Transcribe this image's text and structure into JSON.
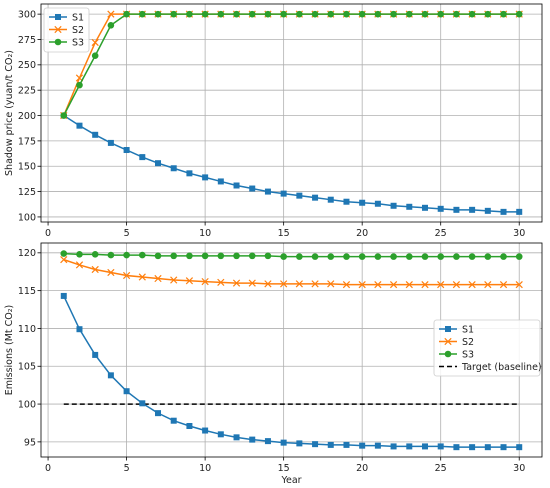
{
  "chart_data": [
    {
      "type": "line",
      "xlabel": "",
      "ylabel": "Shadow price (yuan/t CO₂)",
      "xlim": [
        -0.45,
        31.45
      ],
      "ylim": [
        95,
        310
      ],
      "xticks": [
        0,
        5,
        10,
        15,
        20,
        25,
        30
      ],
      "yticks": [
        100,
        125,
        150,
        175,
        200,
        225,
        250,
        275,
        300
      ],
      "grid": true,
      "legend_position": "top-left",
      "x": [
        1,
        2,
        3,
        4,
        5,
        6,
        7,
        8,
        9,
        10,
        11,
        12,
        13,
        14,
        15,
        16,
        17,
        18,
        19,
        20,
        21,
        22,
        23,
        24,
        25,
        26,
        27,
        28,
        29,
        30
      ],
      "series": [
        {
          "name": "S1",
          "color": "#1f77b4",
          "marker": "square",
          "values": [
            200,
            190,
            181,
            173,
            166,
            159,
            153,
            148,
            143,
            139,
            135,
            131,
            128,
            125,
            123,
            121,
            119,
            117,
            115,
            114,
            113,
            111,
            110,
            109,
            108,
            107,
            107,
            106,
            105,
            105
          ]
        },
        {
          "name": "S2",
          "color": "#ff7f0e",
          "marker": "x",
          "values": [
            200,
            237,
            272,
            300,
            300,
            300,
            300,
            300,
            300,
            300,
            300,
            300,
            300,
            300,
            300,
            300,
            300,
            300,
            300,
            300,
            300,
            300,
            300,
            300,
            300,
            300,
            300,
            300,
            300,
            300
          ]
        },
        {
          "name": "S3",
          "color": "#2ca02c",
          "marker": "circle",
          "values": [
            200,
            230,
            259,
            289,
            300,
            300,
            300,
            300,
            300,
            300,
            300,
            300,
            300,
            300,
            300,
            300,
            300,
            300,
            300,
            300,
            300,
            300,
            300,
            300,
            300,
            300,
            300,
            300,
            300,
            300
          ]
        }
      ]
    },
    {
      "type": "line",
      "xlabel": "Year",
      "ylabel": "Emissions (Mt CO₂)",
      "xlim": [
        -0.45,
        31.45
      ],
      "ylim": [
        93.0,
        121.3
      ],
      "xticks": [
        0,
        5,
        10,
        15,
        20,
        25,
        30
      ],
      "yticks": [
        95,
        100,
        105,
        110,
        115,
        120
      ],
      "grid": true,
      "legend_position": "center-right",
      "x": [
        1,
        2,
        3,
        4,
        5,
        6,
        7,
        8,
        9,
        10,
        11,
        12,
        13,
        14,
        15,
        16,
        17,
        18,
        19,
        20,
        21,
        22,
        23,
        24,
        25,
        26,
        27,
        28,
        29,
        30
      ],
      "series": [
        {
          "name": "S1",
          "color": "#1f77b4",
          "marker": "square",
          "values": [
            114.3,
            109.9,
            106.5,
            103.8,
            101.7,
            100.1,
            98.8,
            97.8,
            97.1,
            96.5,
            96.0,
            95.6,
            95.3,
            95.1,
            94.9,
            94.8,
            94.7,
            94.6,
            94.6,
            94.5,
            94.5,
            94.4,
            94.4,
            94.4,
            94.4,
            94.3,
            94.3,
            94.3,
            94.3,
            94.3
          ]
        },
        {
          "name": "S2",
          "color": "#ff7f0e",
          "marker": "x",
          "values": [
            119.1,
            118.4,
            117.8,
            117.4,
            117.0,
            116.8,
            116.6,
            116.4,
            116.3,
            116.2,
            116.1,
            116.0,
            116.0,
            115.9,
            115.9,
            115.9,
            115.9,
            115.9,
            115.8,
            115.8,
            115.8,
            115.8,
            115.8,
            115.8,
            115.8,
            115.8,
            115.8,
            115.8,
            115.8,
            115.8
          ]
        },
        {
          "name": "S3",
          "color": "#2ca02c",
          "marker": "circle",
          "values": [
            119.9,
            119.8,
            119.8,
            119.7,
            119.7,
            119.7,
            119.6,
            119.6,
            119.6,
            119.6,
            119.6,
            119.6,
            119.6,
            119.6,
            119.5,
            119.5,
            119.5,
            119.5,
            119.5,
            119.5,
            119.5,
            119.5,
            119.5,
            119.5,
            119.5,
            119.5,
            119.5,
            119.5,
            119.5,
            119.5
          ]
        }
      ],
      "reference_lines": [
        {
          "name": "Target (baseline)",
          "color": "#000000",
          "style": "dashed",
          "x": [
            1,
            30
          ],
          "y": 100
        }
      ]
    }
  ]
}
